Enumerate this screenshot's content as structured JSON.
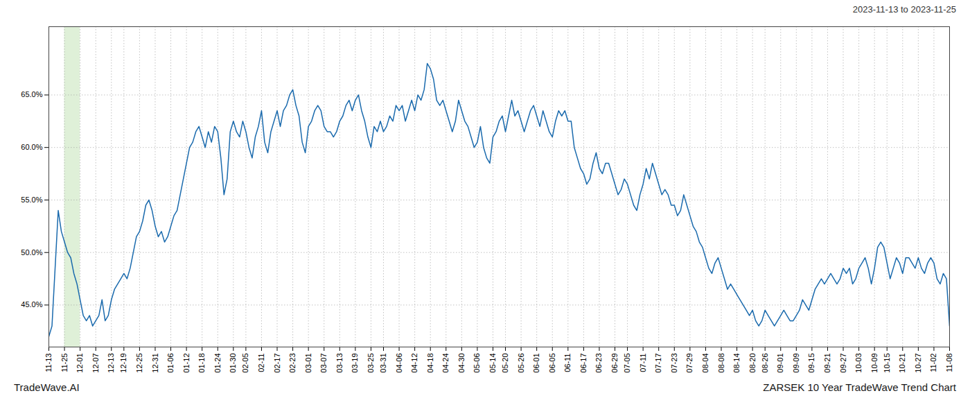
{
  "chart_data": {
    "type": "line",
    "title": "ZARSEK 10 Year TradeWave Trend Chart",
    "subtitle": "2023-11-13 to 2023-11-25",
    "annotations": [
      "TradeWave.AI"
    ],
    "color": "#1a6aad",
    "grid": true,
    "line_style": "solid",
    "highlight": {
      "from": "11-25",
      "to": "12-01",
      "color": "#dff0d8"
    },
    "ylim": [
      41.0,
      71.5
    ],
    "yticks": [
      {
        "value": 45.0,
        "label": "45.0%"
      },
      {
        "value": 50.0,
        "label": "50.0%"
      },
      {
        "value": 55.0,
        "label": "55.0%"
      },
      {
        "value": 60.0,
        "label": "60.0%"
      },
      {
        "value": 65.0,
        "label": "65.0%"
      }
    ],
    "categories": [
      "11-13",
      null,
      null,
      null,
      null,
      "11-25",
      null,
      null,
      null,
      null,
      "12-01",
      null,
      null,
      null,
      null,
      "12-07",
      null,
      null,
      null,
      null,
      "12-13",
      null,
      null,
      null,
      "12-19",
      null,
      null,
      null,
      null,
      "12-25",
      null,
      null,
      null,
      null,
      "12-31",
      null,
      null,
      null,
      null,
      "01-06",
      null,
      null,
      null,
      null,
      "01-12",
      null,
      null,
      null,
      null,
      "01-18",
      null,
      null,
      null,
      null,
      "01-24",
      null,
      null,
      null,
      null,
      "01-30",
      null,
      null,
      null,
      "02-05",
      null,
      null,
      null,
      null,
      "02-11",
      null,
      null,
      null,
      null,
      "02-17",
      null,
      null,
      null,
      null,
      "02-23",
      null,
      null,
      null,
      null,
      "03-01",
      null,
      null,
      null,
      null,
      "03-07",
      null,
      null,
      null,
      null,
      "03-13",
      null,
      null,
      null,
      null,
      "03-19",
      null,
      null,
      null,
      null,
      "03-25",
      null,
      null,
      null,
      "03-31",
      null,
      null,
      null,
      null,
      "04-06",
      null,
      null,
      null,
      null,
      "04-12",
      null,
      null,
      null,
      null,
      "04-18",
      null,
      null,
      null,
      null,
      "04-24",
      null,
      null,
      null,
      null,
      "04-30",
      null,
      null,
      null,
      null,
      "05-06",
      null,
      null,
      null,
      null,
      "05-14",
      null,
      null,
      null,
      "05-20",
      null,
      null,
      null,
      null,
      "05-26",
      null,
      null,
      null,
      null,
      "06-01",
      null,
      null,
      null,
      null,
      "06-05",
      null,
      null,
      null,
      null,
      "06-11",
      null,
      null,
      null,
      null,
      "06-17",
      null,
      null,
      null,
      null,
      "06-23",
      null,
      null,
      null,
      null,
      "06-29",
      null,
      null,
      null,
      "07-05",
      null,
      null,
      null,
      null,
      "07-11",
      null,
      null,
      null,
      null,
      "07-17",
      null,
      null,
      null,
      null,
      "07-23",
      null,
      null,
      null,
      null,
      "07-29",
      null,
      null,
      null,
      null,
      "08-04",
      null,
      null,
      null,
      null,
      "08-08",
      null,
      null,
      null,
      null,
      "08-14",
      null,
      null,
      null,
      null,
      "08-20",
      null,
      null,
      null,
      "08-26",
      null,
      null,
      null,
      null,
      "09-01",
      null,
      null,
      null,
      null,
      "09-09",
      null,
      null,
      null,
      null,
      "09-15",
      null,
      null,
      null,
      null,
      "09-21",
      null,
      null,
      null,
      null,
      "09-27",
      null,
      null,
      null,
      null,
      "10-03",
      null,
      null,
      null,
      null,
      "10-09",
      null,
      null,
      null,
      "10-15",
      null,
      null,
      null,
      null,
      "10-21",
      null,
      null,
      null,
      null,
      "10-27",
      null,
      null,
      null,
      null,
      "11-02",
      null,
      null,
      null,
      null,
      "11-08"
    ],
    "values": [
      42.0,
      43.0,
      48.5,
      54.0,
      52.0,
      51.0,
      50.0,
      49.5,
      48.0,
      47.0,
      45.5,
      44.0,
      43.5,
      44.0,
      43.0,
      43.5,
      44.0,
      45.5,
      43.5,
      44.0,
      45.5,
      46.5,
      47.0,
      47.5,
      48.0,
      47.5,
      48.5,
      50.0,
      51.5,
      52.0,
      53.0,
      54.5,
      55.0,
      54.0,
      52.5,
      51.5,
      52.0,
      51.0,
      51.5,
      52.5,
      53.5,
      54.0,
      55.5,
      57.0,
      58.5,
      60.0,
      60.5,
      61.5,
      62.0,
      61.0,
      60.0,
      61.5,
      60.5,
      62.0,
      61.5,
      59.0,
      55.5,
      57.0,
      61.5,
      62.5,
      61.5,
      61.0,
      62.5,
      61.5,
      60.0,
      59.0,
      61.0,
      62.0,
      63.5,
      60.5,
      59.5,
      61.5,
      62.5,
      63.5,
      62.0,
      63.5,
      64.0,
      65.0,
      65.5,
      64.0,
      63.0,
      60.5,
      59.5,
      62.0,
      62.5,
      63.5,
      64.0,
      63.5,
      62.0,
      61.5,
      61.5,
      61.0,
      61.5,
      62.5,
      63.0,
      64.0,
      64.5,
      63.5,
      64.5,
      65.0,
      63.5,
      62.5,
      61.0,
      60.0,
      62.0,
      61.5,
      62.5,
      61.5,
      62.0,
      63.0,
      62.5,
      64.0,
      63.5,
      64.0,
      62.5,
      63.5,
      64.5,
      63.5,
      65.0,
      64.5,
      65.5,
      68.0,
      67.5,
      66.5,
      64.5,
      64.0,
      64.5,
      63.5,
      62.5,
      61.5,
      62.5,
      64.5,
      63.5,
      62.5,
      62.0,
      61.0,
      60.0,
      60.5,
      62.0,
      60.0,
      59.0,
      58.5,
      61.0,
      61.5,
      62.5,
      63.0,
      61.5,
      63.0,
      64.5,
      63.0,
      63.5,
      62.5,
      61.5,
      62.5,
      63.5,
      64.0,
      63.0,
      62.0,
      63.5,
      62.5,
      61.5,
      61.0,
      62.5,
      63.5,
      63.0,
      63.5,
      62.5,
      62.5,
      60.0,
      59.0,
      58.0,
      57.5,
      56.5,
      57.0,
      58.5,
      59.5,
      58.0,
      57.5,
      58.5,
      58.5,
      57.5,
      56.5,
      55.5,
      56.0,
      57.0,
      56.5,
      55.5,
      54.5,
      54.0,
      55.5,
      56.5,
      58.0,
      57.0,
      58.5,
      57.5,
      56.5,
      55.5,
      56.0,
      55.5,
      54.5,
      54.5,
      53.5,
      54.0,
      55.5,
      54.5,
      53.5,
      52.5,
      52.0,
      51.0,
      50.5,
      49.5,
      48.5,
      48.0,
      49.0,
      49.5,
      48.5,
      47.5,
      46.5,
      47.0,
      46.5,
      46.0,
      45.5,
      45.0,
      44.5,
      44.0,
      44.5,
      43.5,
      43.0,
      43.5,
      44.5,
      44.0,
      43.5,
      43.0,
      43.5,
      44.0,
      44.5,
      44.0,
      43.5,
      43.5,
      44.0,
      44.5,
      45.5,
      45.0,
      44.5,
      45.5,
      46.5,
      47.0,
      47.5,
      47.0,
      47.5,
      48.0,
      47.5,
      47.0,
      47.5,
      48.5,
      48.0,
      48.5,
      47.0,
      47.5,
      48.5,
      49.0,
      49.5,
      48.5,
      47.0,
      48.5,
      50.5,
      51.0,
      50.5,
      49.0,
      47.5,
      48.5,
      49.5,
      49.0,
      48.0,
      49.5,
      49.5,
      49.0,
      48.5,
      49.5,
      48.5,
      48.0,
      49.0,
      49.5,
      49.0,
      47.5,
      47.0,
      48.0,
      47.5,
      43.0
    ]
  }
}
